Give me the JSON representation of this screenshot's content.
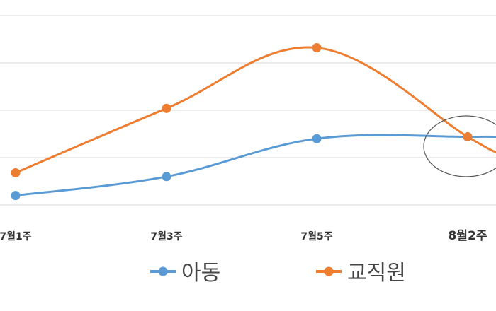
{
  "chart_data": {
    "type": "line",
    "title": "",
    "xlabel": "",
    "ylabel": "",
    "categories": [
      "7월1주",
      "7월3주",
      "7월5주",
      "8월2주"
    ],
    "series": [
      {
        "name": "아동",
        "color": "#5B9BD5",
        "values": [
          0.5,
          1.5,
          3.5,
          3.6
        ]
      },
      {
        "name": "교직원",
        "color": "#ED7D31",
        "values": [
          1.7,
          5.1,
          8.3,
          3.6
        ]
      }
    ],
    "ylim": [
      0,
      10
    ],
    "grid": true,
    "legend_position": "bottom",
    "annotation": "ellipse-highlight-8월2주"
  }
}
